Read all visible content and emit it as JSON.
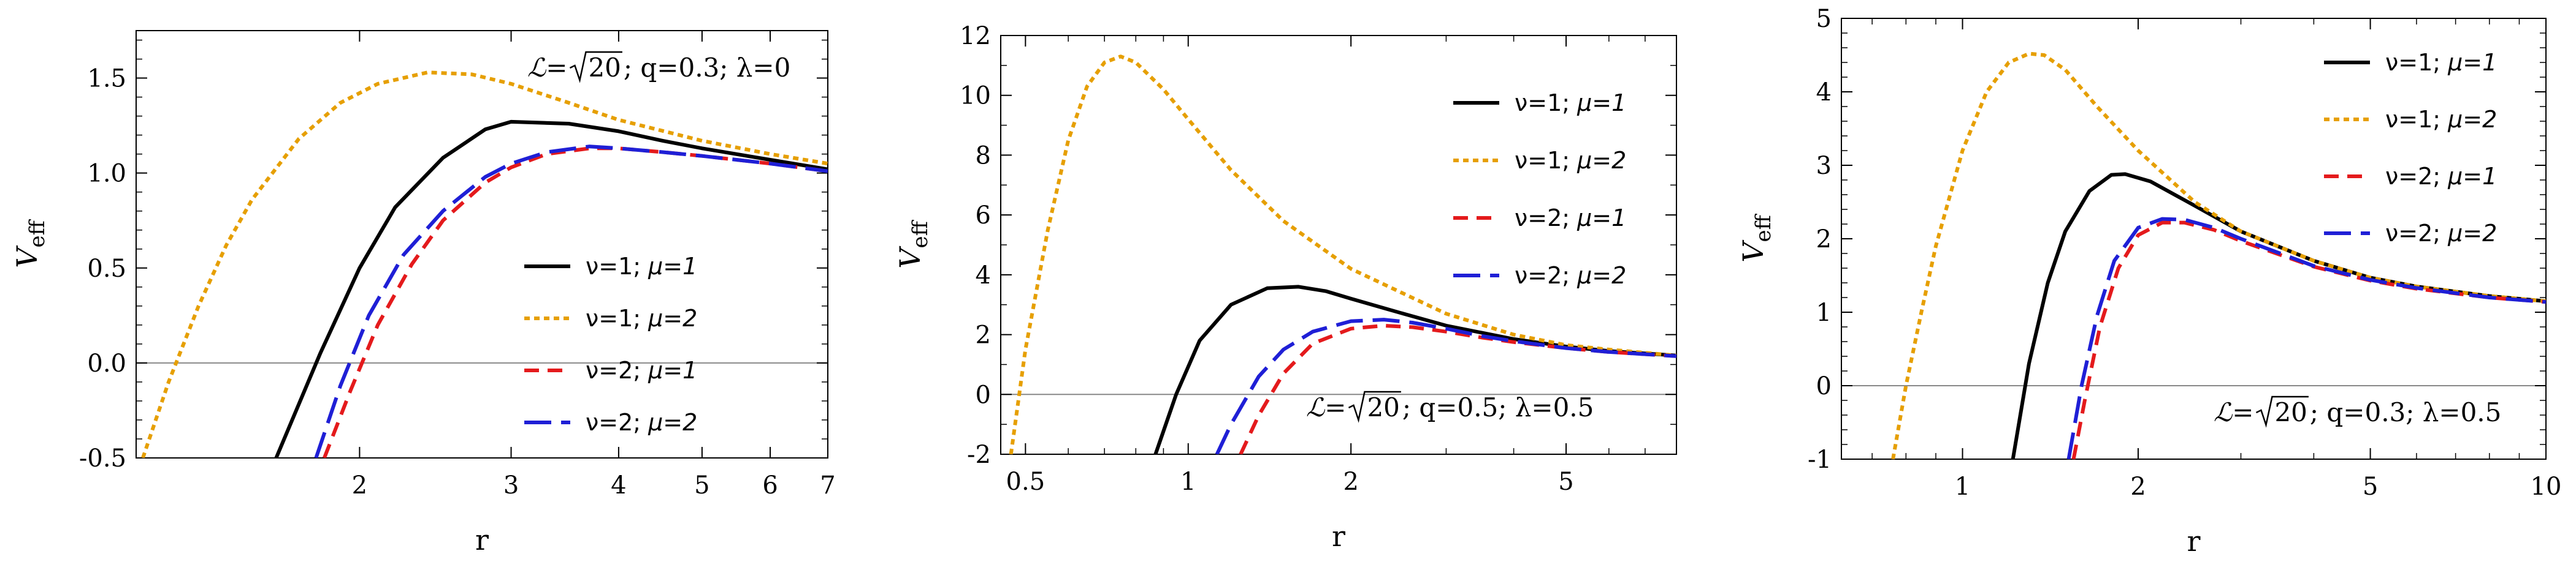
{
  "charts": [
    {
      "ylabel": "V",
      "ylabel_sub": "eff",
      "xlabel": "r",
      "annotation": {
        "l": "ℒ=",
        "sqrt": "20",
        "rest": " ; q=0.3; λ=0"
      },
      "legend": [
        {
          "nu": "ν=1; ",
          "mu": "μ=1"
        },
        {
          "nu": "ν=1; ",
          "mu": "μ=2"
        },
        {
          "nu": "ν=2; ",
          "mu": "μ=1"
        },
        {
          "nu": "ν=2; ",
          "mu": "μ=2"
        }
      ],
      "xticks": [
        "2",
        "3",
        "4",
        "5",
        "6",
        "7"
      ],
      "yticks": [
        "1.5",
        "1.0",
        "0.5",
        "0.0",
        "-0.5"
      ]
    },
    {
      "ylabel": "V",
      "ylabel_sub": "eff",
      "xlabel": "r",
      "annotation": {
        "l": "ℒ=",
        "sqrt": "20",
        "rest": " ; q=0.5; λ=0.5"
      },
      "legend": [
        {
          "nu": "ν=1; ",
          "mu": "μ=1"
        },
        {
          "nu": "ν=1; ",
          "mu": "μ=2"
        },
        {
          "nu": "ν=2; ",
          "mu": "μ=1"
        },
        {
          "nu": "ν=2; ",
          "mu": "μ=2"
        }
      ],
      "xticks": [
        "0.5",
        "1",
        "2",
        "5"
      ],
      "yticks": [
        "12",
        "10",
        "8",
        "6",
        "4",
        "2",
        "0",
        "-2"
      ]
    },
    {
      "ylabel": "V",
      "ylabel_sub": "eff",
      "xlabel": "r",
      "annotation": {
        "l": "ℒ=",
        "sqrt": "20",
        "rest": " ; q=0.3; λ=0.5"
      },
      "legend": [
        {
          "nu": "ν=1; ",
          "mu": "μ=1"
        },
        {
          "nu": "ν=1; ",
          "mu": "μ=2"
        },
        {
          "nu": "ν=2; ",
          "mu": "μ=1"
        },
        {
          "nu": "ν=2; ",
          "mu": "μ=2"
        }
      ],
      "xticks": [
        "1",
        "2",
        "5",
        "10"
      ],
      "yticks": [
        "5",
        "4",
        "3",
        "2",
        "1",
        "0",
        "-1"
      ]
    }
  ],
  "chart_data": [
    {
      "type": "line",
      "xscale": "log",
      "xlim": [
        1.1,
        7
      ],
      "ylim": [
        -0.5,
        1.75
      ],
      "grid": false,
      "legend_position": "middle-right",
      "series": [
        {
          "name": "ν=1; μ=1",
          "color": "#000000",
          "dash": "solid",
          "x": [
            1.6,
            1.8,
            2.0,
            2.2,
            2.5,
            2.8,
            3.0,
            3.5,
            4.0,
            4.5,
            5.0,
            6.0,
            7.0
          ],
          "y": [
            -0.5,
            0.05,
            0.5,
            0.82,
            1.08,
            1.23,
            1.27,
            1.26,
            1.22,
            1.17,
            1.13,
            1.07,
            1.02
          ]
        },
        {
          "name": "ν=1; μ=2",
          "color": "#e69f00",
          "dash": "dotted",
          "x": [
            1.12,
            1.2,
            1.3,
            1.4,
            1.5,
            1.7,
            1.9,
            2.1,
            2.4,
            2.7,
            3.0,
            3.5,
            4.0,
            5.0,
            6.0,
            7.0
          ],
          "y": [
            -0.5,
            -0.1,
            0.3,
            0.62,
            0.86,
            1.18,
            1.37,
            1.47,
            1.53,
            1.52,
            1.47,
            1.37,
            1.28,
            1.17,
            1.1,
            1.05
          ]
        },
        {
          "name": "ν=2; μ=1",
          "color": "#e41a1c",
          "dash": "dashed",
          "x": [
            1.82,
            1.95,
            2.1,
            2.3,
            2.5,
            2.8,
            3.0,
            3.3,
            3.7,
            4.0,
            4.5,
            5.0,
            6.0,
            7.0
          ],
          "y": [
            -0.5,
            -0.15,
            0.2,
            0.52,
            0.75,
            0.95,
            1.03,
            1.1,
            1.13,
            1.13,
            1.11,
            1.09,
            1.05,
            1.01
          ]
        },
        {
          "name": "ν=2; μ=2",
          "color": "#1f1fd6",
          "dash": "longdash",
          "x": [
            1.78,
            1.9,
            2.05,
            2.25,
            2.5,
            2.8,
            3.0,
            3.3,
            3.7,
            4.0,
            4.5,
            5.0,
            6.0,
            7.0
          ],
          "y": [
            -0.5,
            -0.12,
            0.25,
            0.57,
            0.8,
            0.98,
            1.05,
            1.11,
            1.14,
            1.13,
            1.11,
            1.09,
            1.05,
            1.01
          ]
        }
      ]
    },
    {
      "type": "line",
      "xscale": "log",
      "xlim": [
        0.45,
        8
      ],
      "ylim": [
        -2,
        12
      ],
      "grid": false,
      "legend_position": "top-right",
      "series": [
        {
          "name": "ν=1; μ=1",
          "color": "#000000",
          "dash": "solid",
          "x": [
            0.87,
            0.95,
            1.05,
            1.2,
            1.4,
            1.6,
            1.8,
            2.0,
            2.5,
            3.0,
            4.0,
            5.0,
            6.0,
            8.0
          ],
          "y": [
            -2,
            0.0,
            1.8,
            3.0,
            3.55,
            3.6,
            3.45,
            3.2,
            2.7,
            2.3,
            1.85,
            1.6,
            1.45,
            1.3
          ]
        },
        {
          "name": "ν=1; μ=2",
          "color": "#e69f00",
          "dash": "dotted",
          "x": [
            0.47,
            0.5,
            0.55,
            0.6,
            0.65,
            0.7,
            0.75,
            0.8,
            0.9,
            1.0,
            1.2,
            1.5,
            2.0,
            3.0,
            4.0,
            5.0,
            6.0,
            8.0
          ],
          "y": [
            -2,
            1.5,
            5.5,
            8.5,
            10.3,
            11.1,
            11.3,
            11.1,
            10.2,
            9.2,
            7.5,
            5.8,
            4.2,
            2.7,
            2.0,
            1.65,
            1.5,
            1.3
          ]
        },
        {
          "name": "ν=2; μ=1",
          "color": "#e41a1c",
          "dash": "dashed",
          "x": [
            1.25,
            1.35,
            1.5,
            1.7,
            2.0,
            2.3,
            2.6,
            3.0,
            3.5,
            4.0,
            5.0,
            6.0,
            8.0
          ],
          "y": [
            -2,
            -0.7,
            0.7,
            1.7,
            2.2,
            2.3,
            2.25,
            2.1,
            1.9,
            1.75,
            1.55,
            1.42,
            1.28
          ]
        },
        {
          "name": "ν=2; μ=2",
          "color": "#1f1fd6",
          "dash": "longdash",
          "x": [
            1.13,
            1.2,
            1.35,
            1.5,
            1.7,
            2.0,
            2.3,
            2.6,
            3.0,
            3.5,
            4.0,
            5.0,
            6.0,
            8.0
          ],
          "y": [
            -2,
            -1.0,
            0.6,
            1.5,
            2.1,
            2.45,
            2.5,
            2.4,
            2.2,
            1.95,
            1.78,
            1.55,
            1.42,
            1.28
          ]
        }
      ]
    },
    {
      "type": "line",
      "xscale": "log",
      "xlim": [
        0.62,
        10
      ],
      "ylim": [
        -1,
        5
      ],
      "grid": false,
      "legend_position": "top-right",
      "series": [
        {
          "name": "ν=1; μ=1",
          "color": "#000000",
          "dash": "solid",
          "x": [
            1.22,
            1.3,
            1.4,
            1.5,
            1.65,
            1.8,
            1.9,
            2.1,
            2.5,
            3.0,
            4.0,
            5.0,
            6.0,
            8.0,
            10.0
          ],
          "y": [
            -1,
            0.3,
            1.4,
            2.1,
            2.65,
            2.87,
            2.88,
            2.78,
            2.45,
            2.1,
            1.7,
            1.47,
            1.35,
            1.22,
            1.15
          ]
        },
        {
          "name": "ν=1; μ=2",
          "color": "#e69f00",
          "dash": "dotted",
          "x": [
            0.76,
            0.8,
            0.85,
            0.9,
            1.0,
            1.1,
            1.2,
            1.3,
            1.38,
            1.5,
            1.7,
            2.0,
            2.5,
            3.0,
            4.0,
            5.0,
            6.0,
            8.0,
            10.0
          ],
          "y": [
            -1,
            0.0,
            1.0,
            1.9,
            3.2,
            4.0,
            4.4,
            4.52,
            4.5,
            4.3,
            3.8,
            3.2,
            2.5,
            2.1,
            1.7,
            1.47,
            1.35,
            1.22,
            1.15
          ]
        },
        {
          "name": "ν=2; μ=1",
          "color": "#e41a1c",
          "dash": "dashed",
          "x": [
            1.55,
            1.62,
            1.72,
            1.85,
            2.0,
            2.2,
            2.4,
            2.7,
            3.0,
            4.0,
            5.0,
            6.0,
            8.0,
            10.0
          ],
          "y": [
            -1,
            -0.2,
            0.8,
            1.6,
            2.05,
            2.22,
            2.22,
            2.12,
            1.97,
            1.62,
            1.43,
            1.32,
            1.2,
            1.14
          ]
        },
        {
          "name": "ν=2; μ=2",
          "color": "#1f1fd6",
          "dash": "longdash",
          "x": [
            1.52,
            1.6,
            1.7,
            1.82,
            2.0,
            2.2,
            2.4,
            2.7,
            3.0,
            4.0,
            5.0,
            6.0,
            8.0,
            10.0
          ],
          "y": [
            -1,
            0.0,
            0.95,
            1.7,
            2.15,
            2.27,
            2.26,
            2.15,
            2.0,
            1.63,
            1.44,
            1.33,
            1.2,
            1.14
          ]
        }
      ]
    }
  ]
}
